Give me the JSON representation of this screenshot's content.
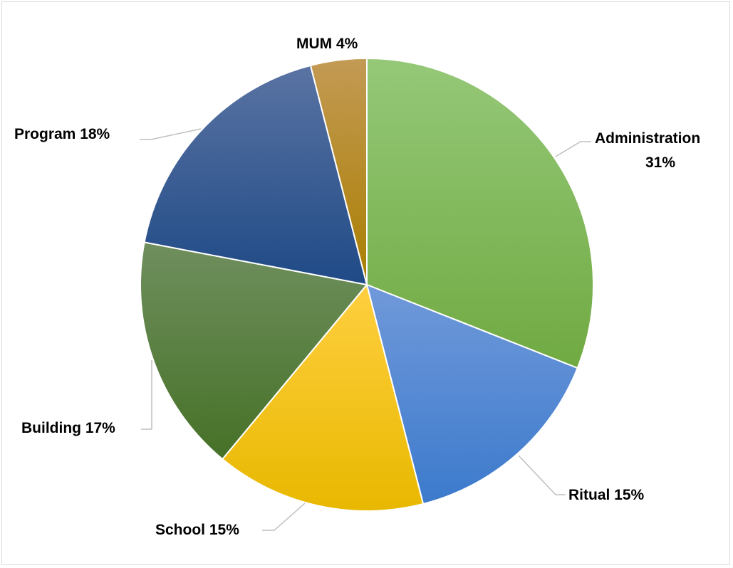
{
  "chart_data": {
    "type": "pie",
    "slices": [
      {
        "name": "Administration",
        "value": 31,
        "label": "Administration",
        "label2": "31%",
        "color_light": "#95c878",
        "color_dark": "#70aa42"
      },
      {
        "name": "Ritual",
        "value": 15,
        "label": "Ritual 15%",
        "color_light": "#7099da",
        "color_dark": "#3c7acc"
      },
      {
        "name": "School",
        "value": 15,
        "label": "School 15%",
        "color_light": "#ffcf40",
        "color_dark": "#e8b800"
      },
      {
        "name": "Building",
        "value": 17,
        "label": "Building 17%",
        "color_light": "#6f8f5e",
        "color_dark": "#467127"
      },
      {
        "name": "Program",
        "value": 18,
        "label": "Program 18%",
        "color_light": "#5a73a3",
        "color_dark": "#1f4a86"
      },
      {
        "name": "MUM",
        "value": 4,
        "label": "MUM 4%",
        "color_light": "#c39a55",
        "color_dark": "#aa7e00"
      }
    ],
    "start_angle_deg": 0,
    "direction": "clockwise",
    "legend": "none",
    "data_labels": "outside-with-leader-lines"
  }
}
